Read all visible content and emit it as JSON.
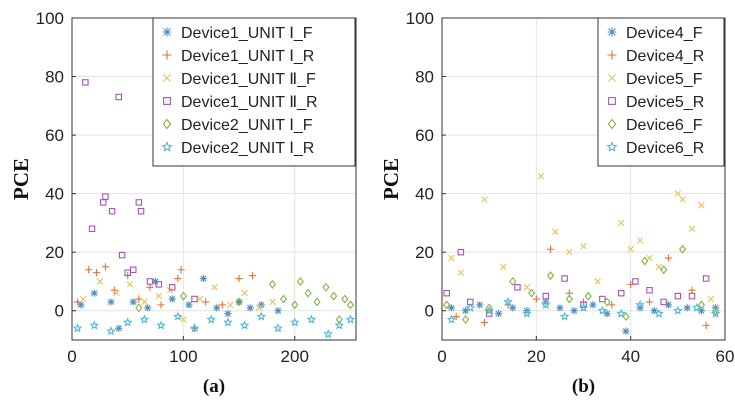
{
  "chart_data": [
    {
      "type": "scatter",
      "panel_label": "(a)",
      "xlabel": "",
      "ylabel": "PCE",
      "xlim": [
        0,
        255
      ],
      "ylim": [
        -10,
        100
      ],
      "xticks": [
        "0",
        "100",
        "200"
      ],
      "xtick_values": [
        0,
        100,
        200
      ],
      "yticks": [
        "0",
        "20",
        "40",
        "60",
        "80",
        "100"
      ],
      "ytick_values": [
        0,
        20,
        40,
        60,
        80,
        100
      ],
      "grid": true,
      "legend_position": "top-right",
      "series": [
        {
          "name": "Device1_UNIT Ⅰ_F",
          "marker": "asterisk",
          "color": "#4f8fc0",
          "x": [
            8,
            20,
            35,
            42,
            55,
            68,
            75,
            90,
            105,
            118,
            130,
            140,
            150,
            160,
            170,
            185
          ],
          "y": [
            2,
            6,
            3,
            -6,
            3,
            1,
            10,
            4,
            2,
            11,
            1,
            -1,
            3,
            1,
            2,
            0
          ]
        },
        {
          "name": "Device1_UNIT Ⅰ_R",
          "marker": "plus",
          "color": "#e0733a",
          "x": [
            5,
            15,
            22,
            30,
            38,
            50,
            60,
            70,
            80,
            95,
            98,
            110,
            120,
            135,
            150,
            162
          ],
          "y": [
            3,
            14,
            13,
            15,
            7,
            12,
            4,
            8,
            2,
            11,
            14,
            -6,
            3,
            2,
            11,
            12
          ]
        },
        {
          "name": "Device1_UNIT Ⅱ_F",
          "marker": "x",
          "color": "#e6c35a",
          "x": [
            10,
            25,
            40,
            52,
            65,
            78,
            88,
            100,
            115,
            128,
            142,
            155,
            168,
            180
          ],
          "y": [
            4,
            10,
            6,
            9,
            3,
            5,
            7,
            -3,
            4,
            8,
            2,
            6,
            1,
            3
          ]
        },
        {
          "name": "Device1_UNIT Ⅱ_R",
          "marker": "square",
          "color": "#a058b4",
          "x": [
            12,
            18,
            28,
            30,
            36,
            42,
            45,
            50,
            55,
            60,
            62,
            70,
            78,
            90,
            110
          ],
          "y": [
            78,
            28,
            37,
            39,
            34,
            73,
            19,
            13,
            14,
            37,
            34,
            10,
            9,
            8,
            4
          ]
        },
        {
          "name": "Device2_UNIT Ⅰ_F",
          "marker": "diamond",
          "color": "#82b446",
          "x": [
            180,
            190,
            200,
            205,
            212,
            220,
            228,
            235,
            240,
            245,
            250,
            60,
            100,
            150
          ],
          "y": [
            9,
            4,
            2,
            10,
            6,
            3,
            8,
            5,
            -3,
            4,
            2,
            1,
            5,
            3
          ]
        },
        {
          "name": "Device2_UNIT Ⅰ_R",
          "marker": "star",
          "color": "#4db8d8",
          "x": [
            5,
            20,
            35,
            50,
            65,
            80,
            95,
            110,
            125,
            140,
            155,
            170,
            185,
            200,
            215,
            230,
            240,
            250
          ],
          "y": [
            -6,
            -5,
            -7,
            -4,
            -3,
            -5,
            -2,
            -6,
            -3,
            -4,
            -5,
            -2,
            -6,
            -4,
            -3,
            -8,
            -5,
            -3
          ]
        }
      ]
    },
    {
      "type": "scatter",
      "panel_label": "(b)",
      "xlabel": "",
      "ylabel": "PCE",
      "xlim": [
        0,
        60
      ],
      "ylim": [
        -10,
        100
      ],
      "xticks": [
        "0",
        "20",
        "40",
        "60"
      ],
      "xtick_values": [
        0,
        20,
        40,
        60
      ],
      "yticks": [
        "0",
        "20",
        "40",
        "60",
        "80",
        "100"
      ],
      "ytick_values": [
        0,
        20,
        40,
        60,
        80,
        100
      ],
      "grid": true,
      "legend_position": "top-right",
      "series": [
        {
          "name": "Device4_F",
          "marker": "asterisk",
          "color": "#4f8fc0",
          "x": [
            2,
            5,
            8,
            12,
            15,
            18,
            22,
            25,
            28,
            32,
            35,
            39,
            42,
            45,
            48,
            52,
            55,
            58
          ],
          "y": [
            1,
            0,
            2,
            -1,
            1,
            0,
            3,
            1,
            0,
            2,
            -1,
            -7,
            1,
            0,
            2,
            1,
            0,
            1
          ]
        },
        {
          "name": "Device4_R",
          "marker": "plus",
          "color": "#e0733a",
          "x": [
            3,
            9,
            14,
            20,
            23,
            27,
            30,
            36,
            40,
            44,
            48,
            53,
            56
          ],
          "y": [
            -2,
            -4,
            2,
            4,
            21,
            6,
            3,
            2,
            9,
            3,
            18,
            7,
            -5
          ]
        },
        {
          "name": "Device5_F",
          "marker": "x",
          "color": "#e6c35a",
          "x": [
            2,
            4,
            9,
            13,
            18,
            21,
            24,
            27,
            30,
            33,
            38,
            40,
            42,
            44,
            46,
            50,
            51,
            53,
            55,
            57
          ],
          "y": [
            18,
            13,
            38,
            15,
            8,
            46,
            27,
            20,
            22,
            10,
            30,
            21,
            24,
            18,
            15,
            40,
            38,
            28,
            36,
            4
          ]
        },
        {
          "name": "Device5_R",
          "marker": "square",
          "color": "#a058b4",
          "x": [
            1,
            4,
            6,
            10,
            16,
            22,
            26,
            30,
            34,
            38,
            41,
            44,
            47,
            50,
            53,
            56
          ],
          "y": [
            6,
            20,
            3,
            -1,
            8,
            5,
            11,
            2,
            4,
            6,
            10,
            7,
            3,
            5,
            5,
            11
          ]
        },
        {
          "name": "Device6_F",
          "marker": "diamond",
          "color": "#82b446",
          "x": [
            1,
            5,
            10,
            15,
            19,
            23,
            27,
            31,
            35,
            39,
            43,
            47,
            51,
            55,
            58
          ],
          "y": [
            2,
            -3,
            1,
            10,
            6,
            12,
            4,
            5,
            3,
            -2,
            17,
            14,
            21,
            2,
            0
          ]
        },
        {
          "name": "Device6_R",
          "marker": "star",
          "color": "#4db8d8",
          "x": [
            2,
            6,
            10,
            14,
            18,
            22,
            26,
            30,
            34,
            38,
            42,
            46,
            50,
            54,
            58
          ],
          "y": [
            -3,
            1,
            0,
            3,
            -1,
            2,
            -2,
            1,
            0,
            -1,
            2,
            -1,
            0,
            1,
            -1
          ]
        }
      ]
    }
  ]
}
